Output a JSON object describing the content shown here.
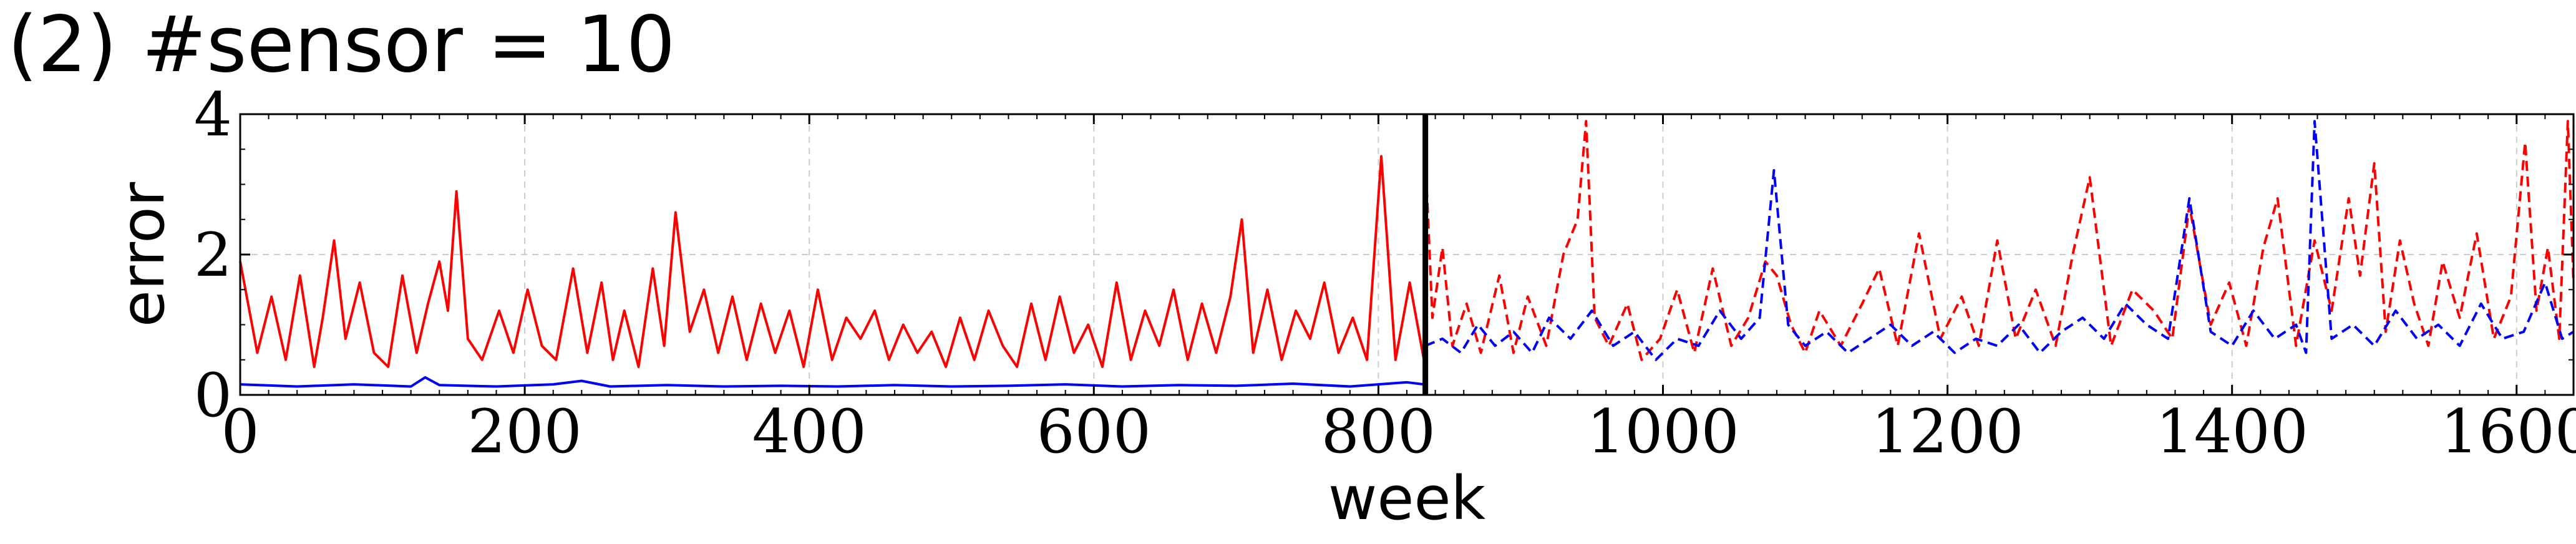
{
  "title": "(2) #sensor = 10",
  "chart_data": {
    "type": "line",
    "title": "(2) #sensor = 10",
    "xlabel": "week",
    "ylabel": "error",
    "xlim": [
      0,
      1640
    ],
    "ylim": [
      0,
      4
    ],
    "xticks": [
      0,
      200,
      400,
      600,
      800,
      1000,
      1200,
      1400,
      1600
    ],
    "yticks": [
      0,
      2,
      4
    ],
    "grid": true,
    "split_x": 833,
    "colors": {
      "red": "#ff0000",
      "blue": "#0000ff",
      "split": "#000000"
    },
    "series": [
      {
        "color": "#ff0000",
        "style": "solid",
        "x": [
          0,
          12,
          22,
          32,
          42,
          52,
          58,
          66,
          74,
          84,
          94,
          104,
          114,
          124,
          132,
          140,
          146,
          152,
          160,
          170,
          182,
          192,
          202,
          212,
          222,
          234,
          244,
          254,
          262,
          270,
          280,
          290,
          298,
          306,
          316,
          326,
          336,
          346,
          356,
          366,
          376,
          386,
          396,
          406,
          416,
          426,
          436,
          446,
          456,
          466,
          476,
          486,
          496,
          506,
          516,
          526,
          536,
          546,
          556,
          566,
          576,
          586,
          596,
          606,
          616,
          626,
          636,
          646,
          656,
          666,
          676,
          686,
          696,
          704,
          712,
          722,
          732,
          742,
          752,
          762,
          772,
          782,
          792,
          802,
          812,
          822,
          832
        ],
        "y": [
          1.9,
          0.6,
          1.4,
          0.5,
          1.7,
          0.4,
          1.1,
          2.2,
          0.8,
          1.6,
          0.6,
          0.4,
          1.7,
          0.6,
          1.3,
          1.9,
          1.2,
          2.9,
          0.8,
          0.5,
          1.2,
          0.6,
          1.5,
          0.7,
          0.5,
          1.8,
          0.6,
          1.6,
          0.5,
          1.2,
          0.4,
          1.8,
          0.7,
          2.6,
          0.9,
          1.5,
          0.6,
          1.4,
          0.5,
          1.3,
          0.6,
          1.2,
          0.4,
          1.5,
          0.5,
          1.1,
          0.8,
          1.2,
          0.5,
          1.0,
          0.6,
          0.9,
          0.4,
          1.1,
          0.5,
          1.2,
          0.7,
          0.4,
          1.3,
          0.5,
          1.4,
          0.6,
          1.0,
          0.4,
          1.6,
          0.5,
          1.2,
          0.7,
          1.5,
          0.5,
          1.3,
          0.6,
          1.4,
          2.5,
          0.6,
          1.5,
          0.5,
          1.2,
          0.8,
          1.6,
          0.6,
          1.1,
          0.5,
          3.4,
          0.5,
          1.6,
          0.5
        ]
      },
      {
        "color": "#0000ff",
        "style": "solid",
        "x": [
          0,
          40,
          80,
          120,
          130,
          140,
          180,
          220,
          240,
          260,
          300,
          340,
          380,
          420,
          460,
          500,
          540,
          580,
          620,
          660,
          700,
          740,
          780,
          820,
          832
        ],
        "y": [
          0.15,
          0.12,
          0.15,
          0.12,
          0.25,
          0.14,
          0.12,
          0.15,
          0.2,
          0.12,
          0.14,
          0.12,
          0.13,
          0.12,
          0.14,
          0.12,
          0.13,
          0.15,
          0.12,
          0.14,
          0.13,
          0.16,
          0.12,
          0.18,
          0.15
        ]
      },
      {
        "color": "#ff0000",
        "style": "dashed",
        "x": [
          833,
          838,
          845,
          852,
          862,
          872,
          885,
          895,
          905,
          918,
          930,
          940,
          946,
          952,
          962,
          975,
          985,
          998,
          1010,
          1022,
          1035,
          1048,
          1060,
          1072,
          1080,
          1090,
          1100,
          1110,
          1125,
          1140,
          1152,
          1165,
          1180,
          1195,
          1210,
          1222,
          1235,
          1248,
          1262,
          1276,
          1288,
          1300,
          1315,
          1330,
          1345,
          1358,
          1370,
          1385,
          1398,
          1410,
          1422,
          1432,
          1445,
          1458,
          1470,
          1482,
          1490,
          1500,
          1508,
          1518,
          1528,
          1538,
          1548,
          1560,
          1572,
          1584,
          1596,
          1606,
          1614,
          1622,
          1630,
          1636,
          1640
        ],
        "y": [
          3.4,
          1.1,
          2.1,
          0.7,
          1.3,
          0.6,
          1.7,
          0.6,
          1.4,
          0.7,
          2.0,
          2.5,
          3.9,
          1.1,
          0.7,
          1.3,
          0.5,
          0.8,
          1.5,
          0.6,
          1.8,
          0.7,
          1.1,
          1.9,
          1.7,
          1.0,
          0.6,
          1.2,
          0.7,
          1.3,
          1.8,
          0.7,
          2.3,
          0.8,
          1.4,
          0.7,
          2.2,
          0.8,
          1.5,
          0.7,
          2.0,
          3.1,
          0.7,
          1.5,
          1.2,
          0.8,
          2.7,
          1.0,
          1.6,
          0.7,
          2.1,
          2.8,
          0.7,
          2.2,
          1.2,
          2.8,
          1.7,
          3.3,
          0.9,
          2.2,
          1.3,
          0.7,
          1.9,
          1.1,
          2.3,
          0.8,
          1.4,
          3.6,
          1.2,
          2.1,
          0.8,
          3.9,
          1.6
        ]
      },
      {
        "color": "#0000ff",
        "style": "dashed",
        "x": [
          833,
          845,
          858,
          870,
          882,
          895,
          908,
          920,
          935,
          950,
          965,
          980,
          995,
          1010,
          1025,
          1040,
          1055,
          1068,
          1078,
          1088,
          1100,
          1115,
          1130,
          1145,
          1160,
          1175,
          1190,
          1205,
          1220,
          1235,
          1250,
          1265,
          1280,
          1295,
          1310,
          1325,
          1340,
          1355,
          1370,
          1385,
          1400,
          1415,
          1430,
          1445,
          1452,
          1458,
          1470,
          1485,
          1500,
          1515,
          1530,
          1545,
          1560,
          1575,
          1590,
          1605,
          1620,
          1632,
          1640
        ],
        "y": [
          0.7,
          0.8,
          0.6,
          1.0,
          0.7,
          0.9,
          0.6,
          1.1,
          0.8,
          1.2,
          0.7,
          0.9,
          0.5,
          0.8,
          0.7,
          1.2,
          0.8,
          1.1,
          3.2,
          1.0,
          0.7,
          0.9,
          0.6,
          0.8,
          1.0,
          0.7,
          0.9,
          0.6,
          0.8,
          0.7,
          1.0,
          0.6,
          0.9,
          1.1,
          0.8,
          1.3,
          1.0,
          0.8,
          2.8,
          0.9,
          0.7,
          1.2,
          0.8,
          1.0,
          0.6,
          3.9,
          0.8,
          1.0,
          0.7,
          1.2,
          0.8,
          1.0,
          0.7,
          1.3,
          0.8,
          0.9,
          1.6,
          0.8,
          0.9
        ]
      }
    ]
  }
}
